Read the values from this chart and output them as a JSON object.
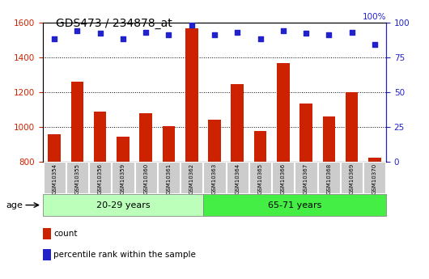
{
  "title": "GDS473 / 234878_at",
  "samples": [
    "GSM10354",
    "GSM10355",
    "GSM10356",
    "GSM10359",
    "GSM10360",
    "GSM10361",
    "GSM10362",
    "GSM10363",
    "GSM10364",
    "GSM10365",
    "GSM10366",
    "GSM10367",
    "GSM10368",
    "GSM10369",
    "GSM10370"
  ],
  "counts": [
    960,
    1260,
    1090,
    945,
    1080,
    1005,
    1565,
    1040,
    1245,
    975,
    1365,
    1135,
    1060,
    1200,
    825
  ],
  "percentile_ranks": [
    88,
    94,
    92,
    88,
    93,
    91,
    98,
    91,
    93,
    88,
    94,
    92,
    91,
    93,
    84
  ],
  "groups": [
    {
      "label": "20-29 years",
      "start": 0,
      "end": 7,
      "color": "#bbffbb"
    },
    {
      "label": "65-71 years",
      "start": 7,
      "end": 15,
      "color": "#44ee44"
    }
  ],
  "ylim_left": [
    800,
    1600
  ],
  "ylim_right": [
    0,
    100
  ],
  "yticks_left": [
    800,
    1000,
    1200,
    1400,
    1600
  ],
  "yticks_right": [
    0,
    25,
    50,
    75,
    100
  ],
  "bar_color": "#cc2200",
  "dot_color": "#2222cc",
  "bar_width": 0.55,
  "tick_label_bg": "#cccccc",
  "age_label": "age",
  "legend_items": [
    {
      "label": "count",
      "color": "#cc2200"
    },
    {
      "label": "percentile rank within the sample",
      "color": "#2222cc"
    }
  ]
}
